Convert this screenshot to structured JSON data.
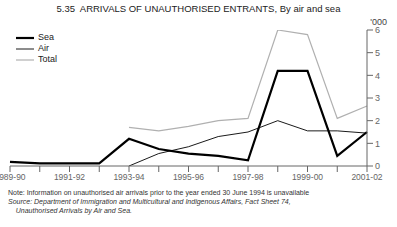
{
  "chart_data": {
    "type": "line",
    "title": "5.35  ARRIVALS OF UNAUTHORISED ENTRANTS, By air and sea",
    "ylabel": "'000",
    "annotations": [
      "Note: Information on unauthorised air arrivals prior to the year ended 30 June 1994 is unavailable",
      "Source: Department of Immigration and Multicultural and Indigenous Affairs, Fact Sheet 74,",
      "    Unauthorised Arrivals by Air and Sea."
    ],
    "categories": [
      "1989-90",
      null,
      "1991-92",
      null,
      "1993-94",
      null,
      "1995-96",
      null,
      "1997-98",
      null,
      "1999-00",
      null,
      "2001-02"
    ],
    "series": [
      {
        "name": "Sea",
        "color": "#000000",
        "values": [
          0.18,
          0.12,
          0.12,
          0.12,
          1.2,
          0.75,
          0.55,
          0.45,
          0.25,
          4.2,
          4.2,
          0.45,
          1.5
        ]
      },
      {
        "name": "Air",
        "color": "#000000",
        "values": [
          null,
          null,
          null,
          null,
          0.0,
          0.55,
          0.85,
          1.3,
          1.5,
          2.0,
          1.55,
          1.55,
          1.45
        ]
      },
      {
        "name": "Total",
        "color": "#b0b0b0",
        "values": [
          null,
          null,
          null,
          null,
          1.7,
          1.55,
          1.75,
          2.0,
          2.1,
          6.0,
          5.8,
          2.1,
          2.65
        ]
      }
    ],
    "ylim": [
      0,
      6
    ],
    "yticks": [
      0,
      1,
      2,
      3,
      4,
      5,
      6
    ],
    "legend": "upper left",
    "grid": false
  }
}
